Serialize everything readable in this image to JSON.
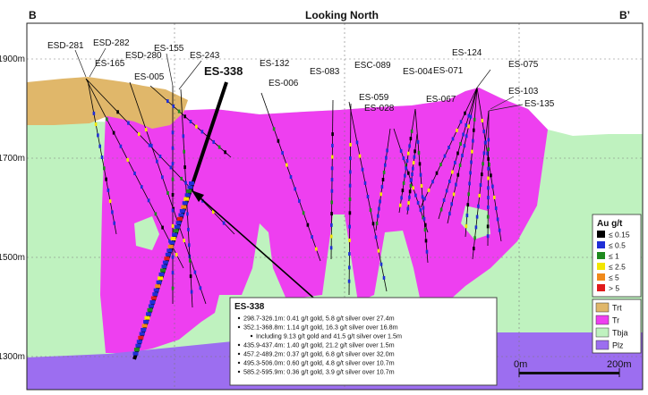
{
  "header": {
    "left_section": "B",
    "right_section": "B’",
    "title": "Looking North"
  },
  "elevations": [
    "1900m",
    "1700m",
    "1500m",
    "1300m"
  ],
  "drillholes": [
    "ESD-281",
    "ESD-282",
    "ES-165",
    "ESD-280",
    "ES-155",
    "ES-005",
    "ES-243",
    "ES-132",
    "ES-006",
    "ES-083",
    "ESC-089",
    "ES-004",
    "ES-059",
    "ES-028",
    "ES-067",
    "ES-071",
    "ES-124",
    "ES-075",
    "ES-103",
    "ES-135"
  ],
  "highlight_hole": "ES-338",
  "legend_assay": {
    "title": "Au g/t",
    "items": [
      {
        "label": "≤ 0.15",
        "color": "#000000"
      },
      {
        "label": "≤ 0.5",
        "color": "#1f2fd6"
      },
      {
        "label": "≤ 1",
        "color": "#1e8a1e"
      },
      {
        "label": "≤ 2.5",
        "color": "#f2e600"
      },
      {
        "label": "≤ 5",
        "color": "#f08a1c"
      },
      {
        "label": "> 5",
        "color": "#e01b1b"
      }
    ]
  },
  "legend_units": [
    {
      "label": "Trt",
      "color": "#e0b76a"
    },
    {
      "label": "Tr",
      "color": "#ee3ff0"
    },
    {
      "label": "Tbja",
      "color": "#bff2bf"
    },
    {
      "label": "Plz",
      "color": "#9c6ef0"
    }
  ],
  "scale": {
    "start": "0m",
    "end": "200m"
  },
  "callout": {
    "title": "ES-338",
    "lines": [
      "298.7-326.1m: 0.41 g/t gold, 5.8 g/t silver over 27.4m",
      "352.1-368.8m: 1.14 g/t gold, 16.3 g/t silver over 16.8m",
      "Including 9.13 g/t gold and 41.5 g/t silver over 1.5m",
      "435.9-437.4m: 1.40 g/t gold, 21.2 g/t silver over 1.5m",
      "457.2-489.2m: 0.37 g/t gold, 6.8 g/t silver over 32.0m",
      "495.3-506.0m: 0.60 g/t gold, 4.8 g/t silver over 10.7m",
      "585.2-595.9m: 0.36 g/t gold, 3.9 g/t silver over 10.7m"
    ]
  },
  "colors": {
    "overburden": "#e0b76a",
    "intrusion": "#ee3ff0",
    "host": "#bff2bf",
    "basement": "#9c6ef0",
    "hole_trace": "#000000",
    "assay_low": "#1f2fd6"
  }
}
